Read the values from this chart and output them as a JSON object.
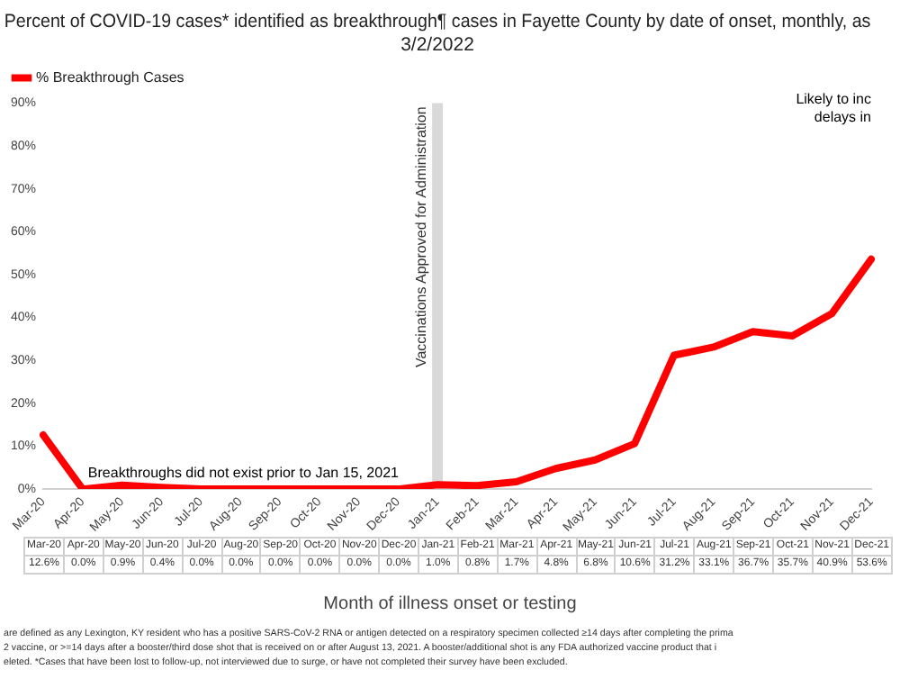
{
  "chart_data": {
    "type": "line",
    "title": "Percent of COVID-19 cases* identified as breakthrough¶ cases in Fayette County by date of onset, monthly, as\n3/2/2022",
    "xlabel": "Month of illness onset or testing",
    "categories": [
      "Mar-20",
      "Apr-20",
      "May-20",
      "Jun-20",
      "Jul-20",
      "Aug-20",
      "Sep-20",
      "Oct-20",
      "Nov-20",
      "Dec-20",
      "Jan-21",
      "Feb-21",
      "Mar-21",
      "Apr-21",
      "May-21",
      "Jun-21",
      "Jul-21",
      "Aug-21",
      "Sep-21",
      "Oct-21",
      "Nov-21",
      "Dec-21"
    ],
    "series": [
      {
        "name": "% Breakthrough Cases",
        "color": "#ff0000",
        "values": [
          12.6,
          0.0,
          0.9,
          0.4,
          0.0,
          0.0,
          0.0,
          0.0,
          0.0,
          0.0,
          1.0,
          0.8,
          1.7,
          4.8,
          6.8,
          10.6,
          31.2,
          33.1,
          36.7,
          35.7,
          40.9,
          53.6
        ],
        "value_labels": [
          "12.6%",
          "0.0%",
          "0.9%",
          "0.4%",
          "0.0%",
          "0.0%",
          "0.0%",
          "0.0%",
          "0.0%",
          "0.0%",
          "1.0%",
          "0.8%",
          "1.7%",
          "4.8%",
          "6.8%",
          "10.6%",
          "31.2%",
          "33.1%",
          "36.7%",
          "35.7%",
          "40.9%",
          "53.6%"
        ]
      }
    ],
    "ylim": [
      0,
      90
    ],
    "yticks": [
      {
        "value": 0,
        "label": "0%"
      },
      {
        "value": 10,
        "label": "10%"
      },
      {
        "value": 20,
        "label": "20%"
      },
      {
        "value": 30,
        "label": "30%"
      },
      {
        "value": 40,
        "label": "40%"
      },
      {
        "value": 50,
        "label": "50%"
      },
      {
        "value": 60,
        "label": "60%"
      },
      {
        "value": 70,
        "label": "70%"
      },
      {
        "value": 80,
        "label": "80%"
      },
      {
        "value": 90,
        "label": "90%"
      }
    ],
    "grid": false,
    "legend": "top left",
    "marker": "none",
    "line_style": "solid",
    "ref_lines": [
      {
        "axis": "x",
        "value": "Jan-21",
        "label": "Vaccinations Approved for Administration",
        "color": "#d9d9d9"
      }
    ],
    "annotations": [
      "Breakthroughs did not exist prior to Jan 15, 2021",
      "Likely to inc\ndelays in",
      "are defined as any Lexington, KY resident who has a positive SARS-CoV-2 RNA or antigen detected on a respiratory specimen collected ≥14 days after completing the prima\n2 vaccine, or >=14 days after a booster/third dose shot that is received on or after August 13, 2021.  A booster/additional shot is any FDA authorized vaccine product that i\neleted. *Cases that have been lost to follow-up, not interviewed due to surge, or have not completed their survey have been excluded."
    ]
  }
}
